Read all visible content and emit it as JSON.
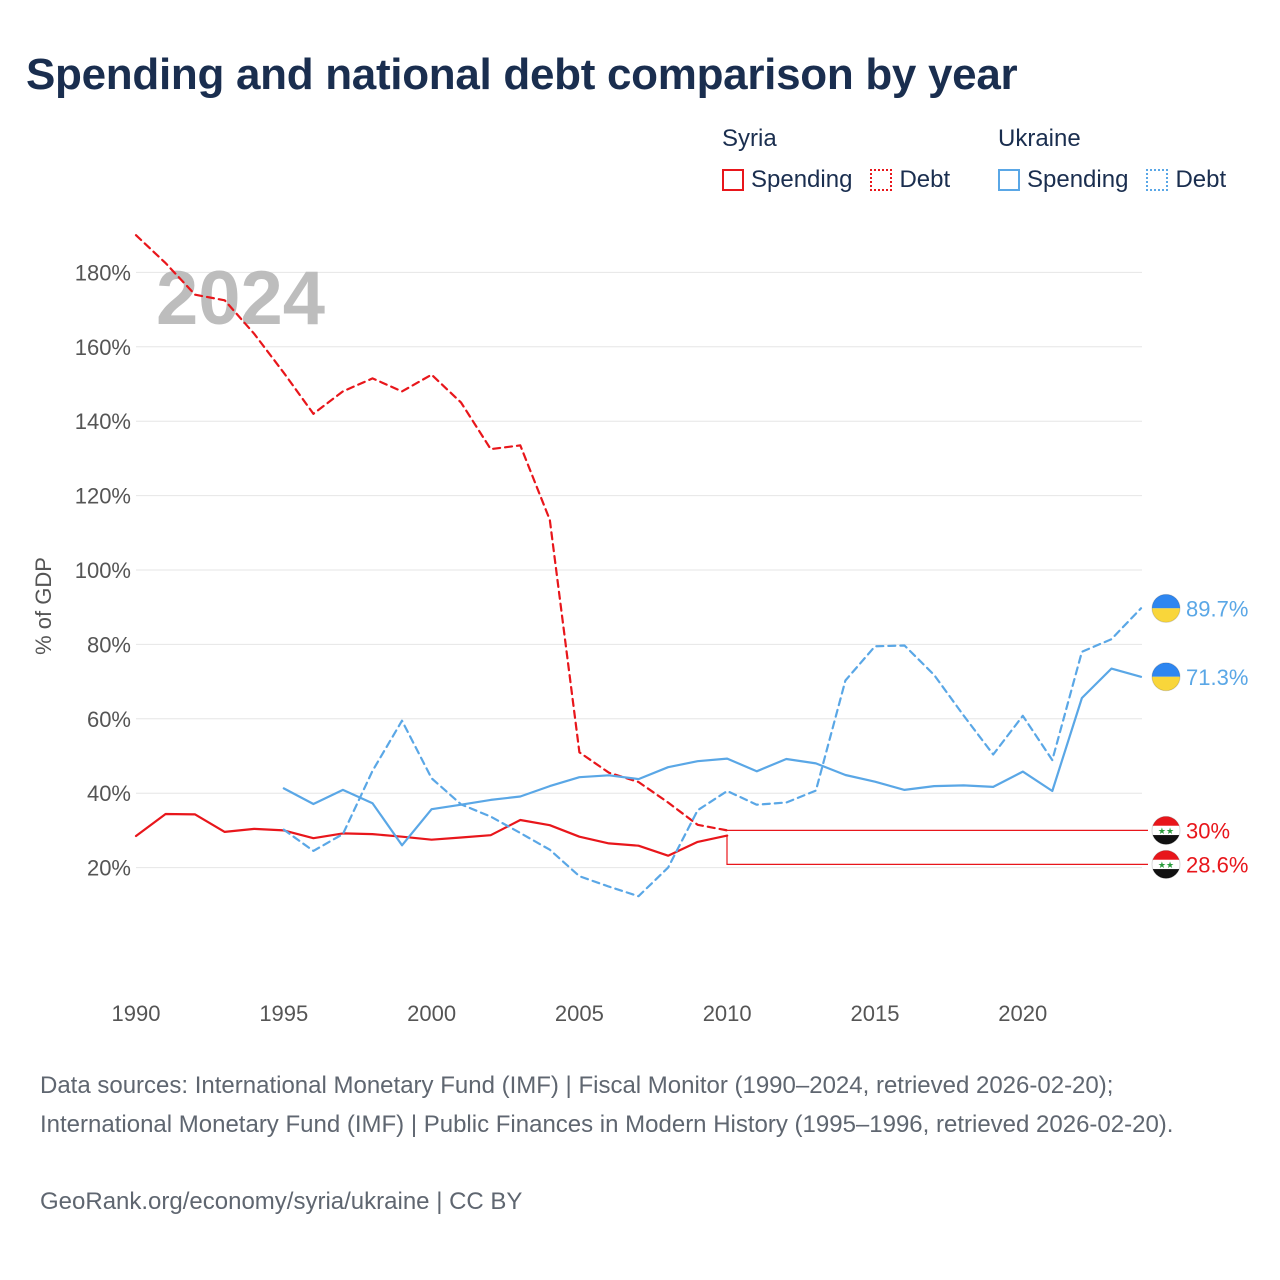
{
  "title": "Spending and national debt comparison by year",
  "legend": {
    "groups": [
      {
        "name": "Syria",
        "color": "#e8161b",
        "items": [
          {
            "label": "Spending",
            "style": "solid"
          },
          {
            "label": "Debt",
            "style": "dotted"
          }
        ]
      },
      {
        "name": "Ukraine",
        "color": "#5aa7e6",
        "items": [
          {
            "label": "Spending",
            "style": "solid"
          },
          {
            "label": "Debt",
            "style": "dotted"
          }
        ]
      }
    ]
  },
  "chart_data": {
    "type": "line",
    "year_label": "2024",
    "ylabel": "% of GDP",
    "xlabel": "",
    "xlim": [
      1990,
      2024
    ],
    "ylim": [
      0,
      190
    ],
    "x_ticks": [
      1990,
      1995,
      2000,
      2005,
      2010,
      2015,
      2020
    ],
    "y_ticks": [
      20,
      40,
      60,
      80,
      100,
      120,
      140,
      160,
      180
    ],
    "y_tick_labels": [
      "20%",
      "40%",
      "60%",
      "80%",
      "100%",
      "120%",
      "140%",
      "160%",
      "180%"
    ],
    "grid": true,
    "series": [
      {
        "name": "Syria Spending",
        "country": "Syria",
        "metric": "Spending",
        "color": "#e8161b",
        "dash": "solid",
        "x": [
          1990,
          1991,
          1992,
          1993,
          1994,
          1995,
          1996,
          1997,
          1998,
          1999,
          2000,
          2001,
          2002,
          2003,
          2004,
          2005,
          2006,
          2007,
          2008,
          2009,
          2010
        ],
        "y": [
          28.5,
          34.4,
          34.3,
          29.6,
          30.4,
          30.0,
          27.9,
          29.2,
          29.0,
          28.3,
          27.5,
          28.1,
          28.7,
          32.8,
          31.4,
          28.3,
          26.5,
          25.9,
          23.2,
          26.9,
          28.6
        ],
        "end_label": "28.6%"
      },
      {
        "name": "Syria Debt",
        "country": "Syria",
        "metric": "Debt",
        "color": "#e8161b",
        "dash": "dashed",
        "x": [
          1990,
          1991,
          1992,
          1993,
          1994,
          1995,
          1996,
          1997,
          1998,
          1999,
          2000,
          2001,
          2002,
          2003,
          2004,
          2005,
          2006,
          2007,
          2008,
          2009,
          2010
        ],
        "y": [
          190,
          182.5,
          174,
          172.5,
          163.5,
          153,
          142,
          148,
          151.5,
          148,
          152.5,
          145,
          132.5,
          133.5,
          113.5,
          51,
          45.5,
          43,
          37.5,
          31.5,
          30.0
        ],
        "end_label": "30%"
      },
      {
        "name": "Ukraine Spending",
        "country": "Ukraine",
        "metric": "Spending",
        "color": "#5aa7e6",
        "dash": "solid",
        "x": [
          1995,
          1996,
          1997,
          1998,
          1999,
          2000,
          2001,
          2002,
          2003,
          2004,
          2005,
          2006,
          2007,
          2008,
          2009,
          2010,
          2011,
          2012,
          2013,
          2014,
          2015,
          2016,
          2017,
          2018,
          2019,
          2020,
          2021,
          2022,
          2023,
          2024
        ],
        "y": [
          41.3,
          37.1,
          40.9,
          37.3,
          26.0,
          35.7,
          36.9,
          38.2,
          39.1,
          41.9,
          44.3,
          44.8,
          43.8,
          47.0,
          48.6,
          49.3,
          45.9,
          49.2,
          48.0,
          44.9,
          43.1,
          40.9,
          41.9,
          42.1,
          41.7,
          45.8,
          40.6,
          65.6,
          73.5,
          71.3
        ],
        "end_label": "71.3%"
      },
      {
        "name": "Ukraine Debt",
        "country": "Ukraine",
        "metric": "Debt",
        "color": "#5aa7e6",
        "dash": "dashed",
        "x": [
          1995,
          1996,
          1997,
          1998,
          1999,
          2000,
          2001,
          2002,
          2003,
          2004,
          2005,
          2006,
          2007,
          2008,
          2009,
          2010,
          2011,
          2012,
          2013,
          2014,
          2015,
          2016,
          2017,
          2018,
          2019,
          2020,
          2021,
          2022,
          2023,
          2024
        ],
        "y": [
          30.2,
          24.5,
          29.0,
          46.0,
          59.5,
          44.0,
          37.0,
          33.7,
          29.3,
          24.8,
          17.7,
          14.9,
          12.3,
          20.0,
          35.4,
          40.6,
          36.9,
          37.5,
          40.7,
          70.3,
          79.5,
          79.7,
          71.8,
          60.9,
          50.4,
          60.8,
          48.9,
          78.0,
          81.4,
          89.7
        ],
        "end_label": "89.7%"
      }
    ]
  },
  "flags": {
    "Syria": {
      "colors": [
        "#e8161b",
        "#ffffff",
        "#111111"
      ],
      "star_color": "#2a9d3c",
      "glyph": "★★"
    },
    "Ukraine": {
      "colors": [
        "#2e86f0",
        "#f9d63a"
      ]
    }
  },
  "footer": {
    "sources": "Data sources: International Monetary Fund (IMF) | Fiscal Monitor (1990–2024, retrieved 2026-02-20); International Monetary Fund (IMF) | Public Finances in Modern History (1995–1996, retrieved 2026-02-20).",
    "credit": "GeoRank.org/economy/syria/ukraine | CC BY"
  }
}
